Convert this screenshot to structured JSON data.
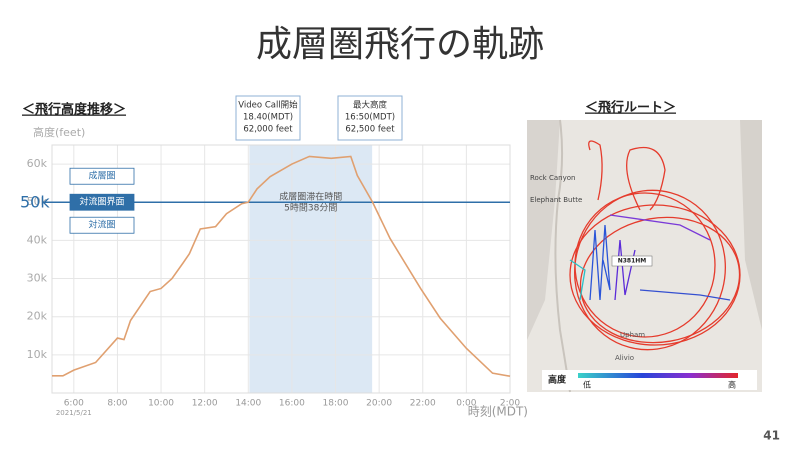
{
  "title": "成層圏飛行の軌跡",
  "page_number": "41",
  "chart_data": {
    "type": "line",
    "section_label": "＜飛行高度推移＞",
    "y_axis_label": "高度(feet)",
    "x_axis_label": "時刻(MDT)",
    "date_label": "2021/5/21",
    "xlim": [
      5,
      26
    ],
    "xticks": [
      {
        "value": 6,
        "label": "6:00"
      },
      {
        "value": 8,
        "label": "8:00"
      },
      {
        "value": 10,
        "label": "10:00"
      },
      {
        "value": 12,
        "label": "12:00"
      },
      {
        "value": 14,
        "label": "14:00"
      },
      {
        "value": 16,
        "label": "16:00"
      },
      {
        "value": 18,
        "label": "18:00"
      },
      {
        "value": 20,
        "label": "20:00"
      },
      {
        "value": 22,
        "label": "22:00"
      },
      {
        "value": 24,
        "label": "0:00"
      },
      {
        "value": 26,
        "label": "2:00"
      }
    ],
    "ylim": [
      0,
      65000
    ],
    "yticks": [
      {
        "value": 10000,
        "label": "10k"
      },
      {
        "value": 20000,
        "label": "20k"
      },
      {
        "value": 30000,
        "label": "30k"
      },
      {
        "value": 40000,
        "label": "40k"
      },
      {
        "value": 50000,
        "label": "50k"
      },
      {
        "value": 60000,
        "label": "60k"
      }
    ],
    "grid": true,
    "x": [
      5.0,
      5.5,
      6.0,
      7.0,
      8.0,
      8.3,
      8.6,
      9.5,
      10.0,
      10.5,
      11.0,
      11.3,
      11.8,
      12.5,
      13.0,
      13.7,
      14.0,
      14.4,
      15.0,
      16.0,
      16.8,
      17.8,
      18.7,
      19.0,
      19.7,
      20.5,
      21.9,
      22.8,
      24.0,
      25.2,
      26.0
    ],
    "series": [
      {
        "color": "#e0a070",
        "values": [
          4500,
          4500,
          6000,
          8000,
          14400,
          14000,
          19000,
          26600,
          27400,
          30000,
          34000,
          36500,
          43000,
          43600,
          47000,
          49600,
          50000,
          53500,
          56700,
          60000,
          62000,
          61500,
          62000,
          57000,
          50000,
          40500,
          27400,
          19600,
          11700,
          5200,
          4400
        ]
      }
    ],
    "reference_line": {
      "value": 50000,
      "label": "50k",
      "color": "#2f6fa8"
    },
    "region_labels": [
      "成層圏",
      "対流圏界面",
      "対流圏"
    ],
    "highlight": {
      "xrange": [
        14.05,
        19.68
      ],
      "color": "#dce8f4",
      "label_lines": [
        "成層圏滞在時間",
        "5時間38分間"
      ]
    },
    "callouts": [
      {
        "lines": [
          "Video Call開始",
          "18.40(MDT)",
          "62,000 feet"
        ]
      },
      {
        "lines": [
          "最大高度",
          "16:50(MDT)",
          "62,500 feet"
        ]
      }
    ]
  },
  "map": {
    "section_label": "＜飛行ルート＞",
    "labels": [
      "Rock Canyon",
      "Elephant Butte",
      "N381HM",
      "Upham",
      "Alivio"
    ],
    "legend_title": "高度",
    "legend_low": "低",
    "legend_high": "高"
  }
}
